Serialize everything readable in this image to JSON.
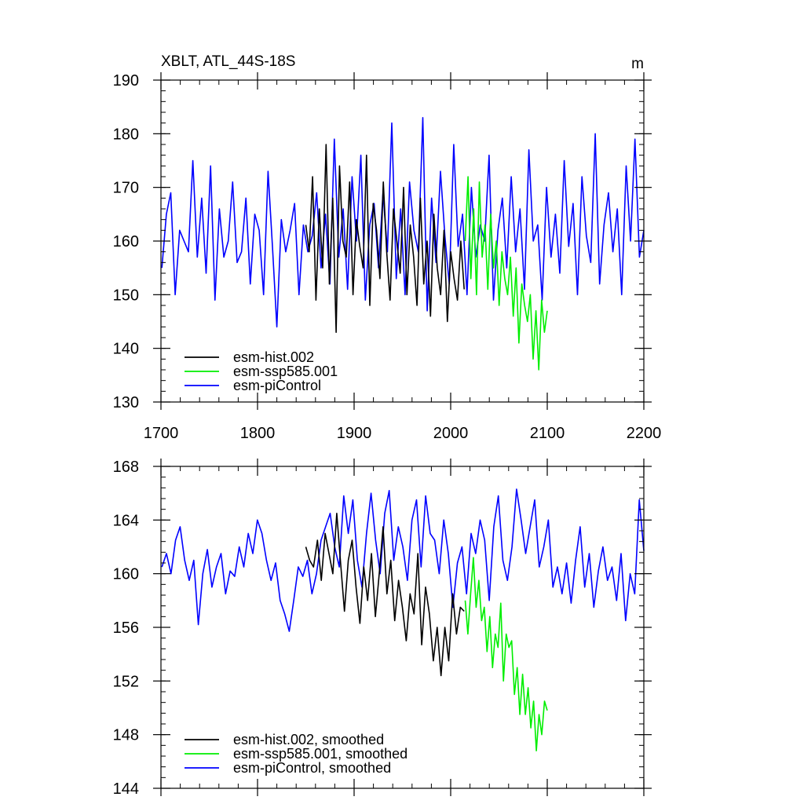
{
  "chart_data": [
    {
      "type": "line",
      "title": "XBLT, ATL_44S-18S",
      "units": "m",
      "xlim": [
        1700,
        2200
      ],
      "ylim": [
        130,
        190
      ],
      "xticks": [
        1700,
        1800,
        1900,
        2000,
        2100,
        2200
      ],
      "yticks": [
        130,
        140,
        150,
        160,
        170,
        180,
        190
      ],
      "legend_position": "bottom-left",
      "series": [
        {
          "name": "esm-piControl",
          "color": "#0000ff",
          "x_start": 1701,
          "x_end": 2200,
          "sampled_values": [
            155,
            165,
            169,
            150,
            162,
            160,
            158,
            175,
            157,
            168,
            154,
            174,
            149,
            166,
            157,
            160,
            171,
            156,
            158,
            168,
            152,
            165,
            162,
            150,
            173,
            159,
            144,
            164,
            158,
            162,
            167,
            150,
            163,
            158,
            161,
            169,
            155,
            165,
            152,
            179,
            157,
            166,
            151,
            172,
            160,
            176,
            149,
            163,
            167,
            155,
            169,
            158,
            182,
            153,
            166,
            150,
            171,
            162,
            158,
            183,
            147,
            168,
            156,
            173,
            161,
            152,
            178,
            159,
            165,
            150,
            170,
            157,
            163,
            160,
            176,
            149,
            162,
            168,
            155,
            172,
            158,
            166,
            151,
            177,
            160,
            163,
            149,
            170,
            157,
            165,
            154,
            175,
            159,
            167,
            150,
            172,
            161,
            156,
            180,
            152,
            163,
            169,
            158,
            166,
            150,
            174,
            160,
            179,
            157,
            162
          ]
        },
        {
          "name": "esm-hist.002",
          "color": "#000000",
          "x_start": 1850,
          "x_end": 2014,
          "sampled_values": [
            163,
            158,
            172,
            149,
            166,
            155,
            178,
            152,
            168,
            143,
            174,
            160,
            157,
            171,
            150,
            164,
            159,
            155,
            176,
            148,
            167,
            162,
            153,
            171,
            158,
            149,
            166,
            160,
            154,
            170,
            150,
            163,
            157,
            148,
            168,
            152,
            160,
            146,
            165,
            155,
            150,
            162,
            145,
            158,
            153,
            149,
            160,
            151
          ]
        },
        {
          "name": "esm-ssp585.001",
          "color": "#00ee00",
          "x_start": 2015,
          "x_end": 2100,
          "sampled_values": [
            160,
            172,
            153,
            166,
            150,
            171,
            157,
            163,
            151,
            165,
            155,
            160,
            148,
            158,
            153,
            150,
            157,
            146,
            155,
            141,
            152,
            148,
            145,
            150,
            138,
            147,
            136,
            149,
            143,
            147
          ]
        }
      ],
      "legend": [
        {
          "label": "esm-hist.002",
          "color": "#000000"
        },
        {
          "label": "esm-ssp585.001",
          "color": "#00ee00"
        },
        {
          "label": "esm-piControl",
          "color": "#0000ff"
        }
      ]
    },
    {
      "type": "line",
      "title": "",
      "xlim": [
        1700,
        2200
      ],
      "ylim": [
        144,
        168
      ],
      "xticks": [
        1700,
        1800,
        1900,
        2000,
        2100,
        2200
      ],
      "yticks": [
        144,
        148,
        152,
        156,
        160,
        164,
        168
      ],
      "legend_position": "bottom-left",
      "series": [
        {
          "name": "esm-piControl, smoothed",
          "color": "#0000ff",
          "x_start": 1701,
          "x_end": 2200,
          "sampled_values": [
            160.5,
            161.5,
            160,
            162.5,
            163.5,
            161,
            159.5,
            161,
            156.2,
            160,
            161.8,
            159,
            160.5,
            161.5,
            158.5,
            160.2,
            159.8,
            162,
            160.5,
            163,
            161.5,
            164,
            163,
            161,
            159.5,
            160.8,
            158,
            157,
            155.7,
            158,
            160.5,
            159.8,
            161,
            158.5,
            160,
            162.5,
            163.5,
            164.5,
            162,
            160.5,
            165.8,
            163,
            165.5,
            161,
            159,
            163,
            166,
            162.5,
            160,
            164.5,
            166.2,
            161,
            163.5,
            162,
            159.5,
            164,
            165.5,
            160.5,
            165.8,
            163,
            162.5,
            160,
            164,
            161.5,
            157.5,
            160.8,
            162,
            158.5,
            163,
            161.5,
            164,
            162.5,
            158,
            163.5,
            165.8,
            161,
            159.5,
            162,
            166.3,
            164,
            161.5,
            163.5,
            165.5,
            160.5,
            162,
            164,
            159,
            160.5,
            158.5,
            160.8,
            157.8,
            161,
            163.5,
            159,
            161.5,
            157.5,
            160.2,
            162,
            159.5,
            160.5,
            158,
            161.5,
            156.5,
            160,
            158.5,
            165.5,
            161.7
          ]
        },
        {
          "name": "esm-hist.002, smoothed",
          "color": "#000000",
          "x_start": 1850,
          "x_end": 2014,
          "sampled_values": [
            162,
            161,
            160.5,
            162.5,
            159.5,
            163,
            161.5,
            160,
            164.5,
            160.8,
            157.2,
            161,
            162.5,
            159,
            156.3,
            160.5,
            158,
            161.5,
            156.8,
            160,
            163.5,
            158.5,
            161,
            156.5,
            159.5,
            157.5,
            155,
            158.5,
            157,
            161.5,
            154.7,
            159,
            157,
            153.5,
            156,
            152.4,
            156,
            153.5,
            158.5,
            155.5,
            157.5,
            157.2
          ]
        },
        {
          "name": "esm-ssp585.001, smoothed",
          "color": "#00ee00",
          "x_start": 2015,
          "x_end": 2100,
          "sampled_values": [
            158,
            155.5,
            158.5,
            161.2,
            157.5,
            159.5,
            156.5,
            157.5,
            154.2,
            156.8,
            153,
            155.5,
            154.5,
            157.8,
            152,
            155.5,
            154.5,
            155,
            151,
            153,
            149.5,
            152.5,
            149.5,
            151.5,
            148.5,
            150.5,
            146.8,
            149.5,
            148,
            150.5,
            149.8
          ]
        }
      ],
      "legend": [
        {
          "label": "esm-hist.002, smoothed",
          "color": "#000000"
        },
        {
          "label": "esm-ssp585.001, smoothed",
          "color": "#00ee00"
        },
        {
          "label": "esm-piControl, smoothed",
          "color": "#0000ff"
        }
      ]
    }
  ]
}
